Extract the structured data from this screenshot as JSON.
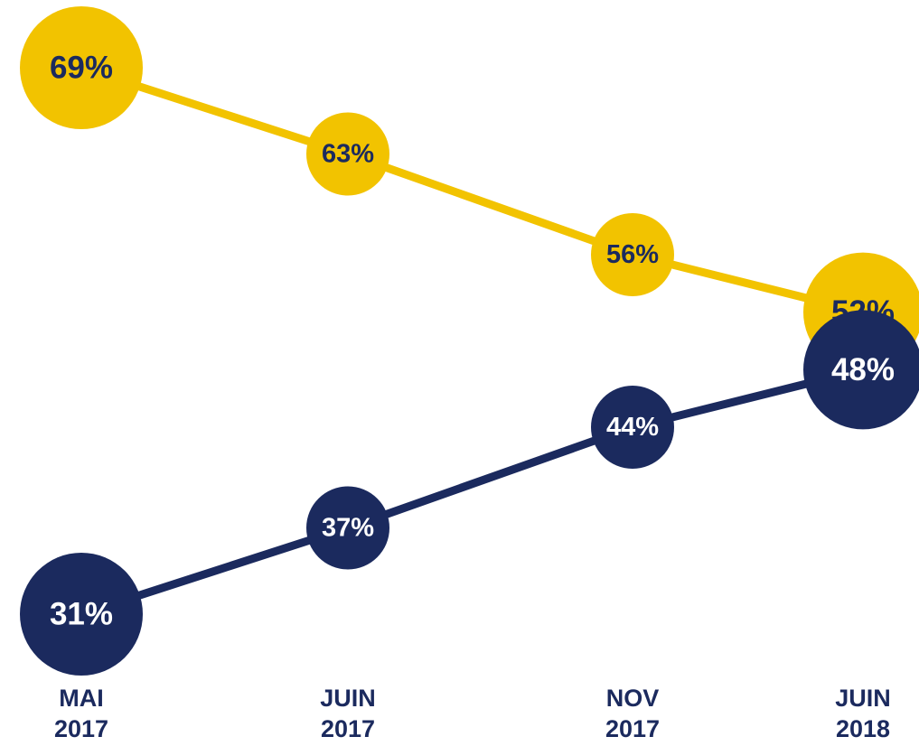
{
  "chart_data": {
    "type": "line",
    "categories": [
      "MAI 2017",
      "JUIN 2017",
      "NOV 2017",
      "JUIN 2018"
    ],
    "series": [
      {
        "color": "#f2c300",
        "label_color": "#1b2a5e",
        "values": [
          69,
          63,
          56,
          52
        ],
        "value_labels": [
          "69%",
          "63%",
          "56%",
          "52%"
        ]
      },
      {
        "color": "#1b2a5e",
        "label_color": "#ffffff",
        "values": [
          31,
          37,
          44,
          48
        ],
        "value_labels": [
          "31%",
          "37%",
          "44%",
          "48%"
        ]
      }
    ]
  }
}
